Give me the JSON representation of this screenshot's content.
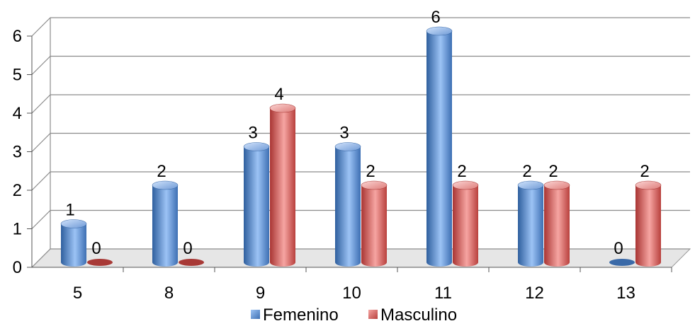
{
  "chart_data": {
    "type": "bar",
    "categories": [
      "5",
      "8",
      "9",
      "10",
      "11",
      "12",
      "13"
    ],
    "series": [
      {
        "name": "Femenino",
        "values": [
          1,
          2,
          3,
          3,
          6,
          2,
          0
        ]
      },
      {
        "name": "Masculino",
        "values": [
          0,
          0,
          4,
          2,
          2,
          2,
          2
        ]
      }
    ],
    "y_ticks": [
      "0",
      "1",
      "2",
      "3",
      "4",
      "5",
      "6"
    ],
    "ylim": [
      0,
      6
    ],
    "grid": true,
    "legend_position": "bottom",
    "style": "3d-cylinder"
  },
  "colors": {
    "Femenino": "#4f81bd",
    "Masculino": "#c0504d"
  }
}
